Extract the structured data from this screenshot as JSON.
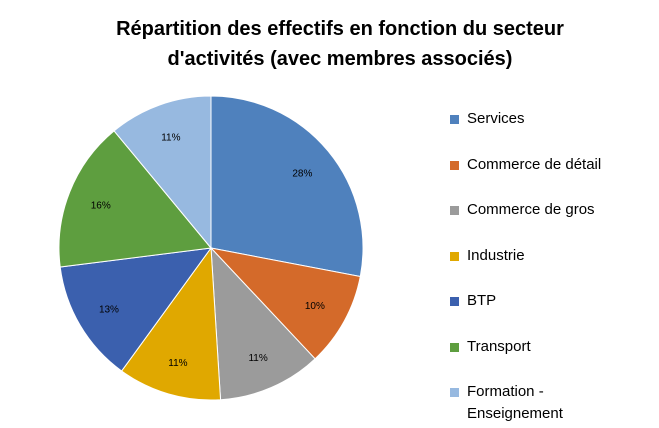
{
  "chart_data": {
    "type": "pie",
    "title_lines": [
      "Répartition des effectifs en fonction du secteur",
      "d'activités (avec membres associés)"
    ],
    "categories": [
      "Services",
      "Commerce de détail",
      "Commerce de gros",
      "Industrie",
      "BTP",
      "Transport",
      "Formation -\nEnseignement"
    ],
    "values": [
      28,
      10,
      11,
      11,
      13,
      16,
      11
    ],
    "data_labels": [
      "28%",
      "10%",
      "11%",
      "11%",
      "13%",
      "16%",
      "11%"
    ],
    "colors": [
      "#4F81BD",
      "#D46A2A",
      "#9B9B9B",
      "#E0A800",
      "#3B60AE",
      "#5E9E3F",
      "#97B9E0"
    ],
    "legend_position": "right"
  }
}
